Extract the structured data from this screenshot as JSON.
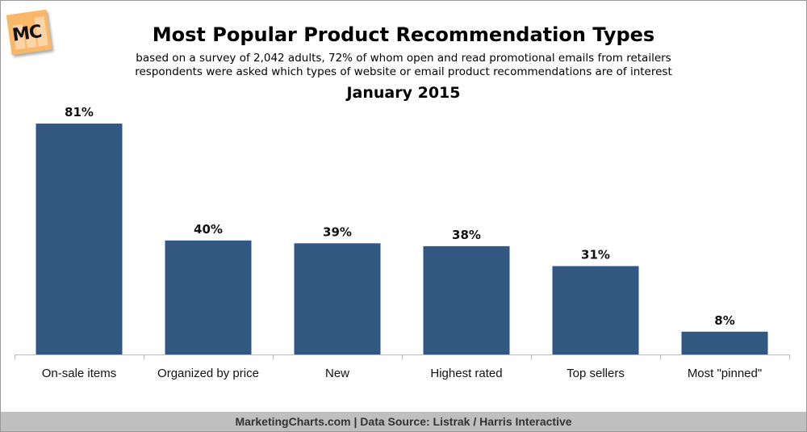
{
  "logo_text": "MC",
  "chart_data": {
    "type": "bar",
    "title": "Most Popular Product Recommendation Types",
    "subtitle_lines": [
      "based on a survey of 2,042 adults, 72% of whom open and read promotional emails from retailers",
      "respondents were asked which types of website or email product recommendations are of interest"
    ],
    "date": "January 2015",
    "categories": [
      "On-sale items",
      "Organized by price",
      "New",
      "Highest rated",
      "Top sellers",
      "Most \"pinned\""
    ],
    "values": [
      81,
      40,
      39,
      38,
      31,
      8
    ],
    "value_labels": [
      "81%",
      "40%",
      "39%",
      "38%",
      "31%",
      "8%"
    ],
    "xlabel": "",
    "ylabel": "",
    "ylim": [
      0,
      100
    ],
    "grid": false,
    "bar_color": "#325780"
  },
  "footer": "MarketingCharts.com | Data Source: Listrak / Harris Interactive"
}
